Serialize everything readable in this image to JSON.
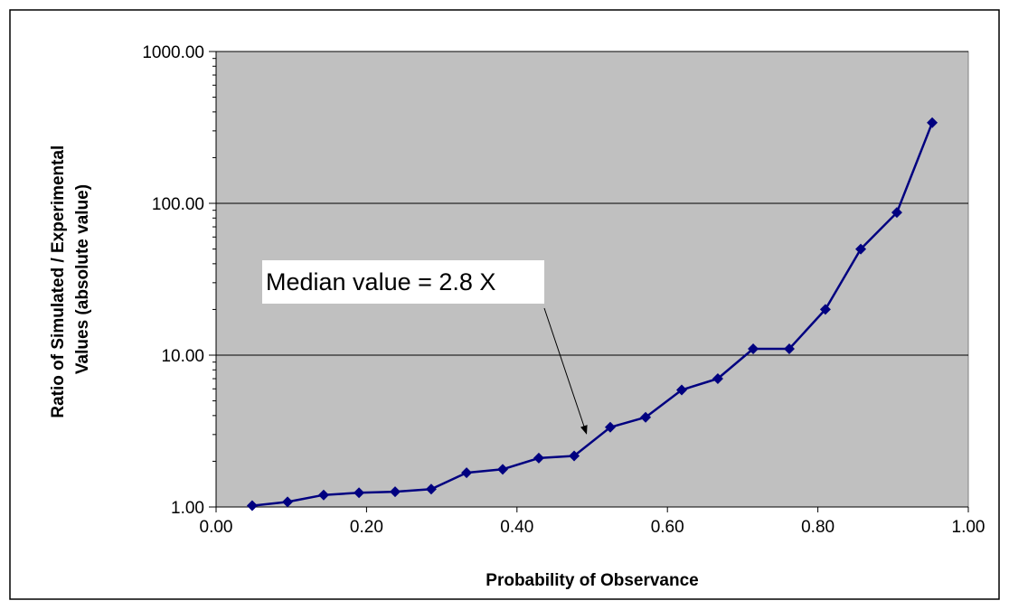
{
  "colors": {
    "plot_background": "#c0c0c0",
    "series_line": "#000080",
    "gridline": "#000000",
    "frame": "#000000"
  },
  "chart_data": {
    "type": "line",
    "title": "",
    "xlabel": "Probability of Observance",
    "ylabel": "Ratio of Simulated / Experimental Values (absolute value)",
    "ylabel_lines": [
      "Ratio of Simulated / Experimental",
      "Values (absolute value)"
    ],
    "xlim": [
      0,
      1
    ],
    "ylim": [
      1,
      1000
    ],
    "y_scale": "log",
    "grid": "horizontal major gridlines",
    "legend": "none",
    "x_ticks": [
      0,
      0.2,
      0.4,
      0.6,
      0.8,
      1.0
    ],
    "x_tick_labels": [
      "0.00",
      "0.20",
      "0.40",
      "0.60",
      "0.80",
      "1.00"
    ],
    "y_ticks": [
      1,
      10,
      100,
      1000
    ],
    "y_tick_labels": [
      "1.00",
      "10.00",
      "100.00",
      "1000.00"
    ],
    "marker": "diamond",
    "series": [
      {
        "x": [
          0.048,
          0.095,
          0.143,
          0.19,
          0.238,
          0.286,
          0.333,
          0.381,
          0.429,
          0.476,
          0.524,
          0.571,
          0.619,
          0.667,
          0.714,
          0.762,
          0.81,
          0.857,
          0.905,
          0.952
        ],
        "values": [
          1.02,
          1.08,
          1.2,
          1.24,
          1.26,
          1.31,
          1.68,
          1.77,
          2.1,
          2.17,
          3.35,
          3.9,
          5.9,
          7.0,
          11.0,
          11.0,
          20.0,
          50.0,
          87.0,
          340.0
        ]
      }
    ],
    "annotations": [
      {
        "text": "Median value = 2.8 X",
        "points_to": {
          "x": 0.49,
          "y": 2.8
        }
      }
    ]
  }
}
